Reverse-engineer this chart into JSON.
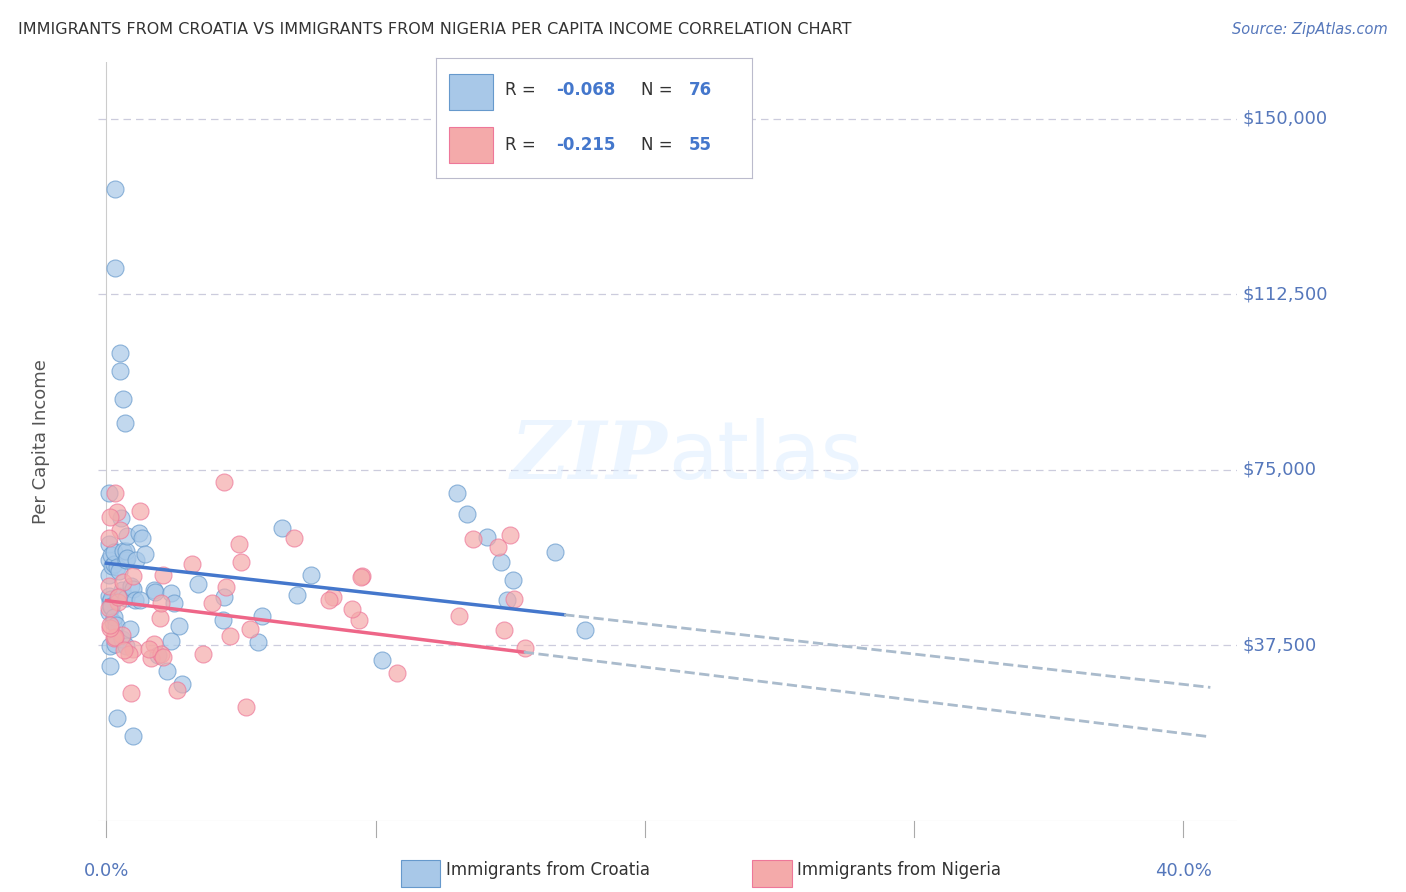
{
  "title": "IMMIGRANTS FROM CROATIA VS IMMIGRANTS FROM NIGERIA PER CAPITA INCOME CORRELATION CHART",
  "source": "Source: ZipAtlas.com",
  "ylabel": "Per Capita Income",
  "ytick_vals": [
    37500,
    75000,
    112500,
    150000
  ],
  "ytick_labels": [
    "$37,500",
    "$75,000",
    "$112,500",
    "$150,000"
  ],
  "ylim": [
    0,
    162000
  ],
  "xlim": [
    -0.003,
    0.42
  ],
  "croatia_color": "#A8C8E8",
  "nigeria_color": "#F4AAAA",
  "croatia_edge_color": "#6699CC",
  "nigeria_edge_color": "#EE7799",
  "croatia_line_color": "#4477CC",
  "nigeria_line_color": "#EE6688",
  "dashed_line_color": "#AABBCC",
  "croatia_R": -0.068,
  "croatia_N": 76,
  "nigeria_R": -0.215,
  "nigeria_N": 55,
  "watermark_text": "ZIPatlas",
  "background_color": "#FFFFFF",
  "grid_color": "#CCCCDD",
  "title_color": "#333333",
  "axis_label_color": "#5577BB",
  "source_color": "#5577BB",
  "seed_croatia": 42,
  "seed_nigeria": 99
}
